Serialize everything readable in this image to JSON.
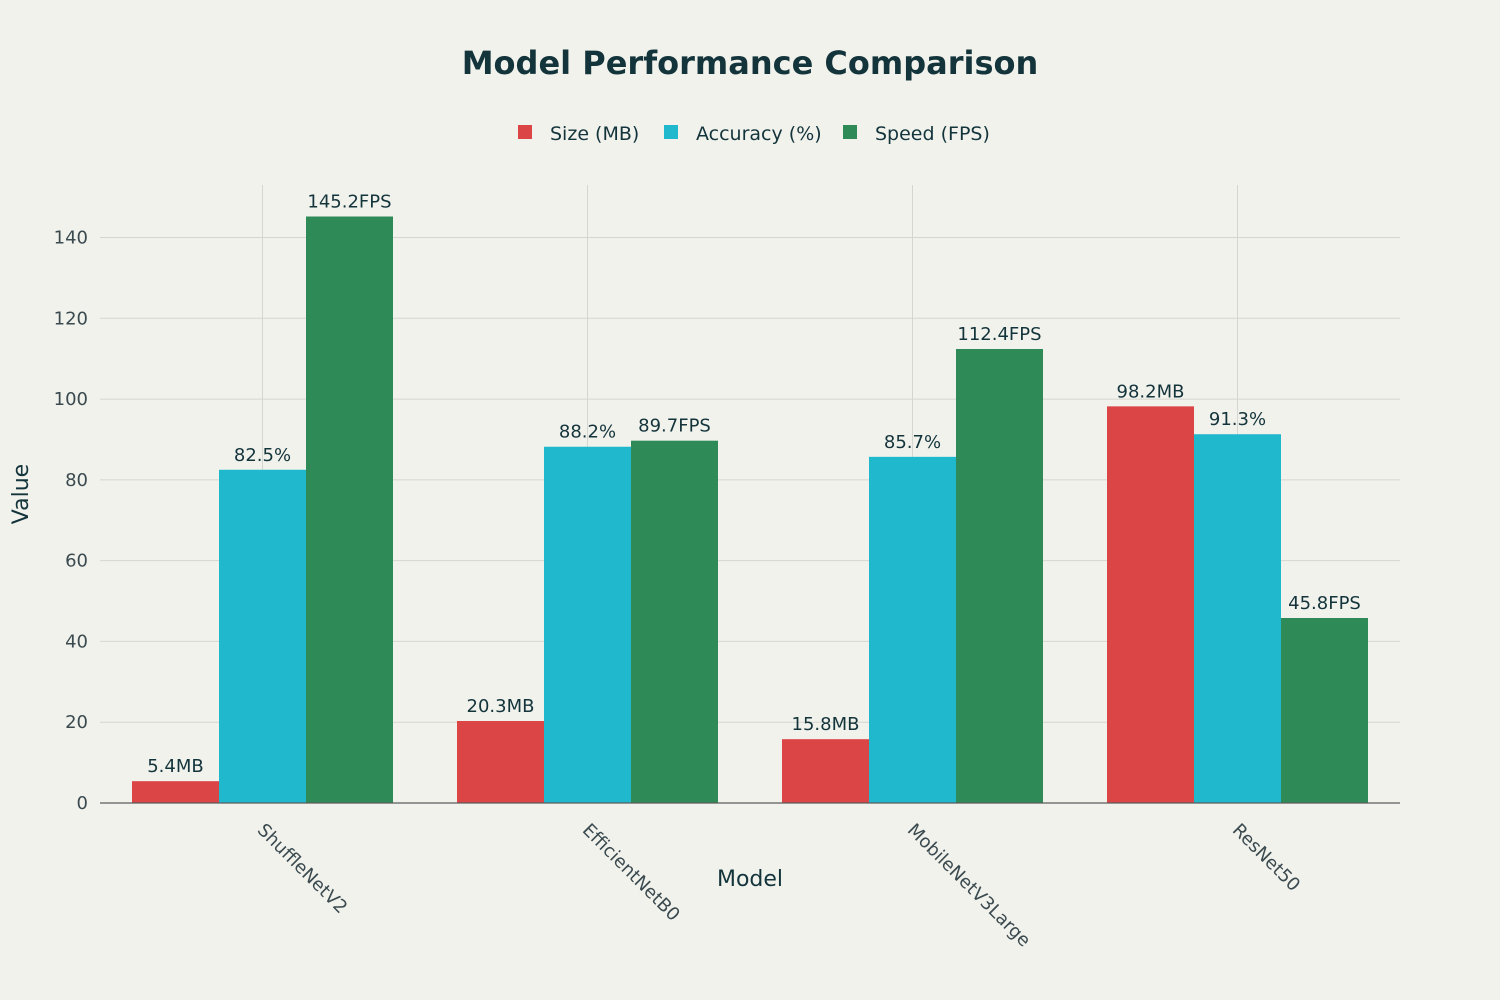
{
  "chart_data": {
    "type": "bar",
    "title": "Model Performance Comparison",
    "xlabel": "Model",
    "ylabel": "Value",
    "ylim": [
      0,
      153
    ],
    "yticks": [
      0,
      20,
      40,
      60,
      80,
      100,
      120,
      140
    ],
    "categories": [
      "ShuffleNetV2",
      "EfficientNetB0",
      "MobileNetV3Large",
      "ResNet50"
    ],
    "series": [
      {
        "name": "Size (MB)",
        "color": "#db4545",
        "values": [
          5.4,
          20.3,
          15.8,
          98.2
        ],
        "labels": [
          "5.4MB",
          "20.3MB",
          "15.8MB",
          "98.2MB"
        ]
      },
      {
        "name": "Accuracy (%)",
        "color": "#20b8cd",
        "values": [
          82.5,
          88.2,
          85.7,
          91.3
        ],
        "labels": [
          "82.5%",
          "88.2%",
          "85.7%",
          "91.3%"
        ]
      },
      {
        "name": "Speed (FPS)",
        "color": "#2e8b57",
        "values": [
          145.2,
          89.7,
          112.4,
          45.8
        ],
        "labels": [
          "145.2FPS",
          "89.7FPS",
          "112.4FPS",
          "45.8FPS"
        ]
      }
    ],
    "grid": true,
    "legend_position": "top-center",
    "x_tick_rotation": 45
  }
}
